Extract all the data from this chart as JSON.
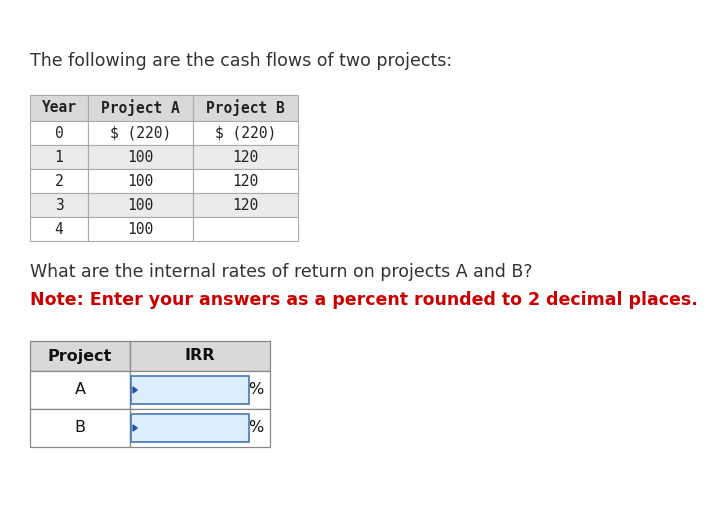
{
  "title_text": "The following are the cash flows of two projects:",
  "title_fontsize": 12.5,
  "title_color": "#333333",
  "background_color": "#ffffff",
  "table1_headers": [
    "Year",
    "Project A",
    "Project B"
  ],
  "table1_rows": [
    [
      "0",
      "$ (220)",
      "$ (220)"
    ],
    [
      "1",
      "100",
      "120"
    ],
    [
      "2",
      "100",
      "120"
    ],
    [
      "3",
      "100",
      "120"
    ],
    [
      "4",
      "100",
      ""
    ]
  ],
  "table1_header_bg": "#d9d9d9",
  "table1_row_bg_even": "#ffffff",
  "table1_row_bg_odd": "#ebebeb",
  "table1_font": "monospace",
  "table1_fontsize": 10.5,
  "question_text": "What are the internal rates of return on projects A and B?",
  "note_text": "Note: Enter your answers as a percent rounded to 2 decimal places.",
  "question_fontsize": 12.5,
  "question_color": "#333333",
  "note_color": "#cc0000",
  "note_fontsize": 12.5,
  "table2_headers": [
    "Project",
    "IRR"
  ],
  "table2_rows": [
    [
      "A",
      ""
    ],
    [
      "B",
      ""
    ]
  ],
  "table2_header_bg": "#d9d9d9",
  "table2_row_bg": "#ffffff",
  "table2_fontsize": 11.5,
  "table2_input_color": "#ddeeff",
  "table2_border_color": "#4477bb",
  "table2_arrow_color": "#2255aa",
  "percent_sign": "%"
}
